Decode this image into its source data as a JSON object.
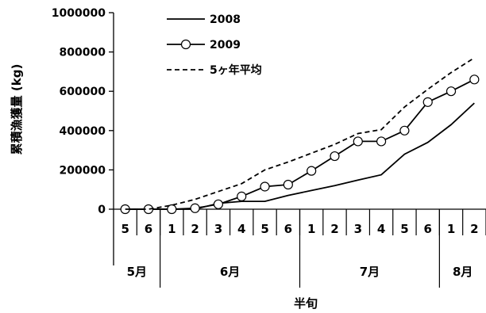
{
  "chart_data": {
    "type": "line",
    "ylabel": "累積漁獲量 (kg)",
    "xlabel": "半旬",
    "ylim": [
      0,
      1000000
    ],
    "yticks": [
      0,
      200000,
      400000,
      600000,
      800000,
      1000000
    ],
    "ytick_labels": [
      "0",
      "200000",
      "400000",
      "600000",
      "800000",
      "1000000"
    ],
    "categories": [
      "5",
      "6",
      "1",
      "2",
      "3",
      "4",
      "5",
      "6",
      "1",
      "2",
      "3",
      "4",
      "5",
      "6",
      "1",
      "2"
    ],
    "month_groups": [
      {
        "label": "5月",
        "count": 2
      },
      {
        "label": "6月",
        "count": 6
      },
      {
        "label": "7月",
        "count": 6
      },
      {
        "label": "8月",
        "count": 2
      }
    ],
    "legend_position": "top-left",
    "grid": false,
    "series": [
      {
        "name": "2008",
        "style": "solid",
        "marker": "none",
        "values": [
          0,
          0,
          0,
          0,
          30000,
          40000,
          40000,
          70000,
          95000,
          120000,
          148000,
          175000,
          280000,
          340000,
          430000,
          540000
        ]
      },
      {
        "name": "2009",
        "style": "solid",
        "marker": "open-circle",
        "values": [
          0,
          0,
          0,
          5000,
          25000,
          65000,
          115000,
          125000,
          195000,
          270000,
          345000,
          345000,
          400000,
          545000,
          600000,
          660000
        ]
      },
      {
        "name": "5ヶ年平均",
        "style": "dashed",
        "marker": "none",
        "values": [
          0,
          0,
          20000,
          50000,
          90000,
          130000,
          200000,
          240000,
          285000,
          330000,
          385000,
          405000,
          520000,
          610000,
          695000,
          770000
        ]
      }
    ]
  }
}
